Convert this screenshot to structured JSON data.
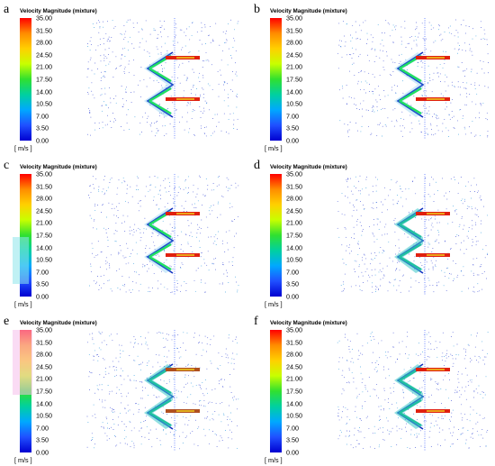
{
  "colorbar": {
    "title": "Velocity Magnitude (mixture)",
    "labels": [
      "35.00",
      "31.50",
      "28.00",
      "24.50",
      "21.00",
      "17.50",
      "14.00",
      "10.50",
      "7.00",
      "3.50",
      "0.00"
    ],
    "unit": "[ m/s ]",
    "colors": [
      "#ff0000",
      "#ff8c00",
      "#ffd000",
      "#c8ff00",
      "#30e030",
      "#00d0a0",
      "#00a8ff",
      "#2050ff",
      "#0000d0"
    ]
  },
  "panels": [
    {
      "letter": "a",
      "variant": "plain"
    },
    {
      "letter": "b",
      "variant": "plain"
    },
    {
      "letter": "c",
      "variant": "cyan-overlay"
    },
    {
      "letter": "d",
      "variant": "teal"
    },
    {
      "letter": "e",
      "variant": "pink-overlay"
    },
    {
      "letter": "f",
      "variant": "teal"
    }
  ]
}
